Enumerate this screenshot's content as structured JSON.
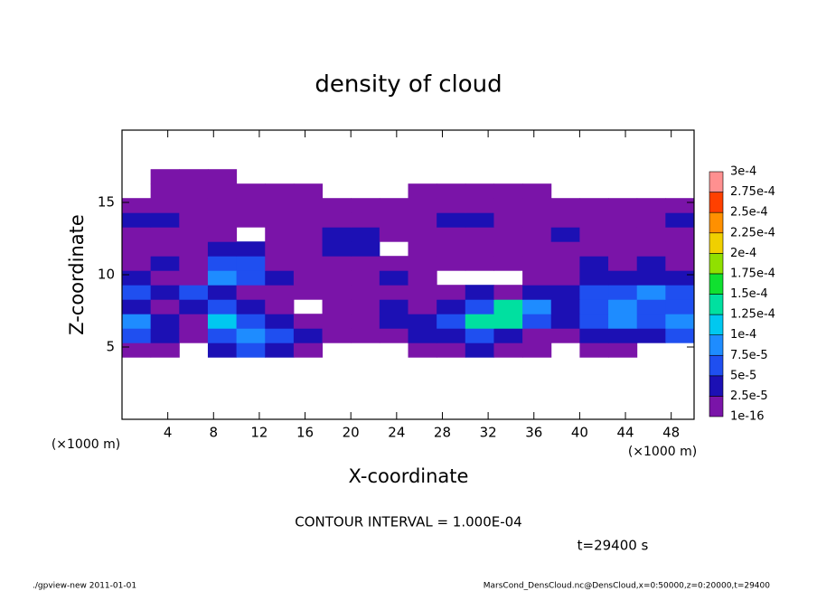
{
  "chart_data": {
    "type": "contour",
    "title": "density of cloud",
    "xlabel": "X-coordinate",
    "ylabel": "Z-coordinate",
    "xunit": "(×1000 m)",
    "yunit": "(×1000 m)",
    "annotation": "CONTOUR INTERVAL = 1.000E-04",
    "time_label": "t=29400 s",
    "footer_left": "./gpview-new   2011-01-01",
    "footer_right": "MarsCond_DensCloud.nc@DensCloud,x=0:50000,z=0:20000,t=29400",
    "xlim": [
      0,
      50
    ],
    "ylim": [
      0,
      20
    ],
    "xticks": [
      4,
      8,
      12,
      16,
      20,
      24,
      28,
      32,
      36,
      40,
      44,
      48
    ],
    "yticks": [
      5,
      10,
      15
    ],
    "levels": [
      {
        "value": 1e-16,
        "label": "1e-16"
      },
      {
        "value": 2.5e-05,
        "label": "2.5e-5"
      },
      {
        "value": 5e-05,
        "label": "5e-5"
      },
      {
        "value": 7.5e-05,
        "label": "7.5e-5"
      },
      {
        "value": 0.0001,
        "label": "1e-4"
      },
      {
        "value": 0.000125,
        "label": "1.25e-4"
      },
      {
        "value": 0.00015,
        "label": "1.5e-4"
      },
      {
        "value": 0.000175,
        "label": "1.75e-4"
      },
      {
        "value": 0.0002,
        "label": "2e-4"
      },
      {
        "value": 0.000225,
        "label": "2.25e-4"
      },
      {
        "value": 0.00025,
        "label": "2.5e-4"
      },
      {
        "value": 0.000275,
        "label": "2.75e-4"
      },
      {
        "value": 0.0003,
        "label": "3e-4"
      }
    ],
    "colors": [
      "#7a14a8",
      "#1c10b4",
      "#1f4ff0",
      "#1e8cff",
      "#00c8f0",
      "#00e0a0",
      "#10e030",
      "#90e000",
      "#f0d000",
      "#ff9000",
      "#ff4000",
      "#ff9090"
    ],
    "xbins": [
      0,
      2.5,
      5,
      7.5,
      10,
      12.5,
      15,
      17.5,
      20,
      22.5,
      25,
      27.5,
      30,
      32.5,
      35,
      37.5,
      40,
      42.5,
      45,
      47.5,
      50
    ],
    "zbins": [
      4.3,
      5.3,
      6.3,
      7.3,
      8.3,
      9.3,
      10.3,
      11.3,
      12.3,
      13.3,
      14.3,
      15.3,
      16.3,
      17.3
    ],
    "values": [
      [
        1e-05,
        1e-05,
        null,
        3e-05,
        6e-05,
        3e-05,
        1e-05,
        null,
        null,
        null,
        1e-05,
        1e-05,
        3e-05,
        1e-05,
        1e-05,
        null,
        1e-05,
        1e-05,
        null,
        null
      ],
      [
        6e-05,
        3e-05,
        1e-05,
        6e-05,
        8.5e-05,
        6e-05,
        3e-05,
        1e-05,
        1e-05,
        1e-05,
        3e-05,
        3e-05,
        6e-05,
        3e-05,
        1e-05,
        1e-05,
        3e-05,
        3e-05,
        3e-05,
        6e-05
      ],
      [
        8.5e-05,
        3e-05,
        1e-05,
        0.00011,
        6e-05,
        3e-05,
        1e-05,
        1e-05,
        1e-05,
        3e-05,
        3e-05,
        6e-05,
        0.00014,
        0.00014,
        6e-05,
        3e-05,
        6e-05,
        8.5e-05,
        6e-05,
        8.5e-05
      ],
      [
        3e-05,
        1e-05,
        3e-05,
        6e-05,
        3e-05,
        1e-05,
        null,
        1e-05,
        1e-05,
        3e-05,
        1e-05,
        3e-05,
        6e-05,
        0.00014,
        8.5e-05,
        3e-05,
        6e-05,
        8.5e-05,
        6e-05,
        6e-05
      ],
      [
        6e-05,
        3e-05,
        6e-05,
        3e-05,
        1e-05,
        1e-05,
        1e-05,
        1e-05,
        1e-05,
        1e-05,
        1e-05,
        1e-05,
        3e-05,
        1e-05,
        3e-05,
        3e-05,
        6e-05,
        6e-05,
        8.5e-05,
        6e-05
      ],
      [
        3e-05,
        1e-05,
        1e-05,
        8.5e-05,
        6e-05,
        3e-05,
        1e-05,
        1e-05,
        1e-05,
        3e-05,
        1e-05,
        null,
        null,
        null,
        1e-05,
        1e-05,
        3e-05,
        3e-05,
        3e-05,
        3e-05
      ],
      [
        1e-05,
        3e-05,
        1e-05,
        6e-05,
        6e-05,
        1e-05,
        1e-05,
        1e-05,
        1e-05,
        1e-05,
        1e-05,
        1e-05,
        1e-05,
        1e-05,
        1e-05,
        1e-05,
        3e-05,
        1e-05,
        3e-05,
        1e-05
      ],
      [
        1e-05,
        1e-05,
        1e-05,
        3e-05,
        3e-05,
        1e-05,
        1e-05,
        3e-05,
        3e-05,
        null,
        1e-05,
        1e-05,
        1e-05,
        1e-05,
        1e-05,
        1e-05,
        1e-05,
        1e-05,
        1e-05,
        1e-05
      ],
      [
        1e-05,
        1e-05,
        1e-05,
        1e-05,
        null,
        1e-05,
        1e-05,
        3e-05,
        3e-05,
        1e-05,
        1e-05,
        1e-05,
        1e-05,
        1e-05,
        1e-05,
        3e-05,
        1e-05,
        1e-05,
        1e-05,
        1e-05
      ],
      [
        3e-05,
        3e-05,
        1e-05,
        1e-05,
        1e-05,
        1e-05,
        1e-05,
        1e-05,
        1e-05,
        1e-05,
        1e-05,
        3e-05,
        3e-05,
        1e-05,
        1e-05,
        1e-05,
        1e-05,
        1e-05,
        1e-05,
        3e-05
      ],
      [
        1e-05,
        1e-05,
        1e-05,
        1e-05,
        1e-05,
        1e-05,
        1e-05,
        1e-05,
        1e-05,
        1e-05,
        1e-05,
        1e-05,
        1e-05,
        1e-05,
        1e-05,
        1e-05,
        1e-05,
        1e-05,
        1e-05,
        1e-05
      ],
      [
        null,
        1e-05,
        1e-05,
        1e-05,
        1e-05,
        1e-05,
        1e-05,
        null,
        null,
        null,
        1e-05,
        1e-05,
        1e-05,
        1e-05,
        1e-05,
        null,
        null,
        null,
        null,
        null
      ],
      [
        null,
        1e-05,
        1e-05,
        1e-05,
        null,
        null,
        null,
        null,
        null,
        null,
        null,
        null,
        null,
        null,
        null,
        null,
        null,
        null,
        null,
        null
      ]
    ]
  }
}
